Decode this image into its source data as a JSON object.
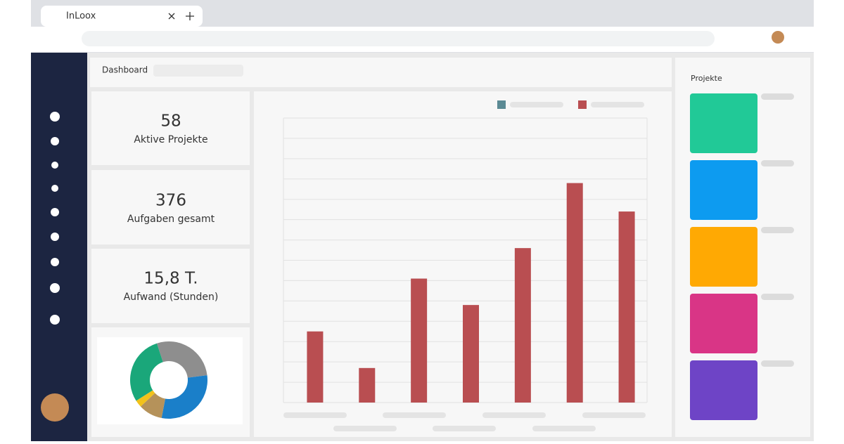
{
  "browser": {
    "tab_title": "InLoox"
  },
  "header": {
    "title": "Dashboard"
  },
  "kpis": [
    {
      "value": "58",
      "label": "Aktive Projekte"
    },
    {
      "value": "376",
      "label": "Aufgaben gesamt"
    },
    {
      "value": "15,8 T.",
      "label": "Aufwand (Stunden)"
    }
  ],
  "chart_data": [
    {
      "type": "donut",
      "categories": [
        null,
        null,
        null,
        null,
        null
      ],
      "values": [
        28,
        30,
        10,
        3,
        29
      ],
      "colors": [
        "#8e8e8e",
        "#1a7fc9",
        "#b5925a",
        "#f2c21b",
        "#1aa77a"
      ]
    },
    {
      "type": "bar",
      "categories": [
        null,
        null,
        null,
        null,
        null,
        null,
        null
      ],
      "series": [
        {
          "color": "#5b8a94",
          "values": [
            null,
            null,
            null,
            null,
            null,
            null,
            null
          ]
        },
        {
          "color": "#b94e51",
          "values": [
            3.5,
            1.7,
            6.1,
            4.8,
            7.6,
            10.8,
            9.4
          ]
        }
      ],
      "ylim": [
        0,
        14
      ],
      "yticks": [
        0,
        1,
        2,
        3,
        4,
        5,
        6,
        7,
        8,
        9,
        10,
        11,
        12,
        13,
        14
      ],
      "grid": true
    }
  ],
  "projects": {
    "title": "Projekte",
    "colors": [
      "#21c997",
      "#0d9bf0",
      "#ffa903",
      "#d93586",
      "#6e44c6"
    ]
  }
}
